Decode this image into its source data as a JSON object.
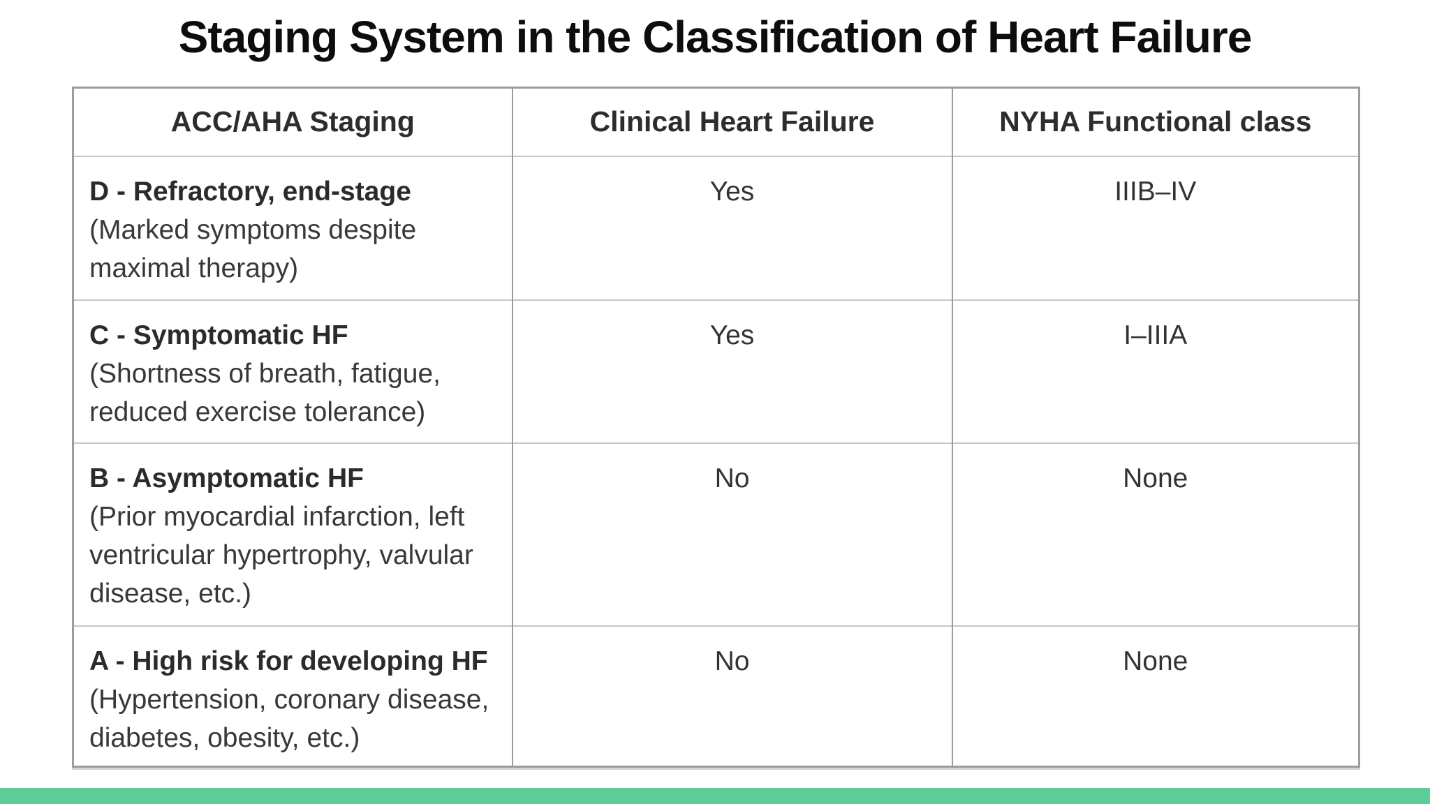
{
  "page": {
    "title": "Staging System in the Classification of Heart Failure"
  },
  "table": {
    "columns": [
      "ACC/AHA Staging",
      "Clinical Heart Failure",
      "NYHA Functional class"
    ],
    "rows": [
      {
        "stage": "D - Refractory, end-stage",
        "description": "(Marked symptoms despite maximal therapy)",
        "clinical_hf": "Yes",
        "nyha_class": "IIIB–IV"
      },
      {
        "stage": "C - Symptomatic HF",
        "description": "(Shortness of breath, fatigue, reduced exercise tolerance)",
        "clinical_hf": "Yes",
        "nyha_class": "I–IIIA"
      },
      {
        "stage": "B - Asymptomatic HF",
        "description": "(Prior myocardial infarction, left ventricular hypertrophy, valvular disease, etc.)",
        "clinical_hf": "No",
        "nyha_class": "None"
      },
      {
        "stage": "A - High risk for developing HF",
        "description": "(Hypertension, coronary disease, diabetes, obesity, etc.)",
        "clinical_hf": "No",
        "nyha_class": "None"
      }
    ]
  },
  "colors": {
    "accent_bar": "#5ecd95",
    "border_vertical": "#9c9c9c",
    "border_horizontal": "#c6c6c6",
    "title_text": "#0d0d0d",
    "body_text": "#333333",
    "background": "#ffffff"
  }
}
